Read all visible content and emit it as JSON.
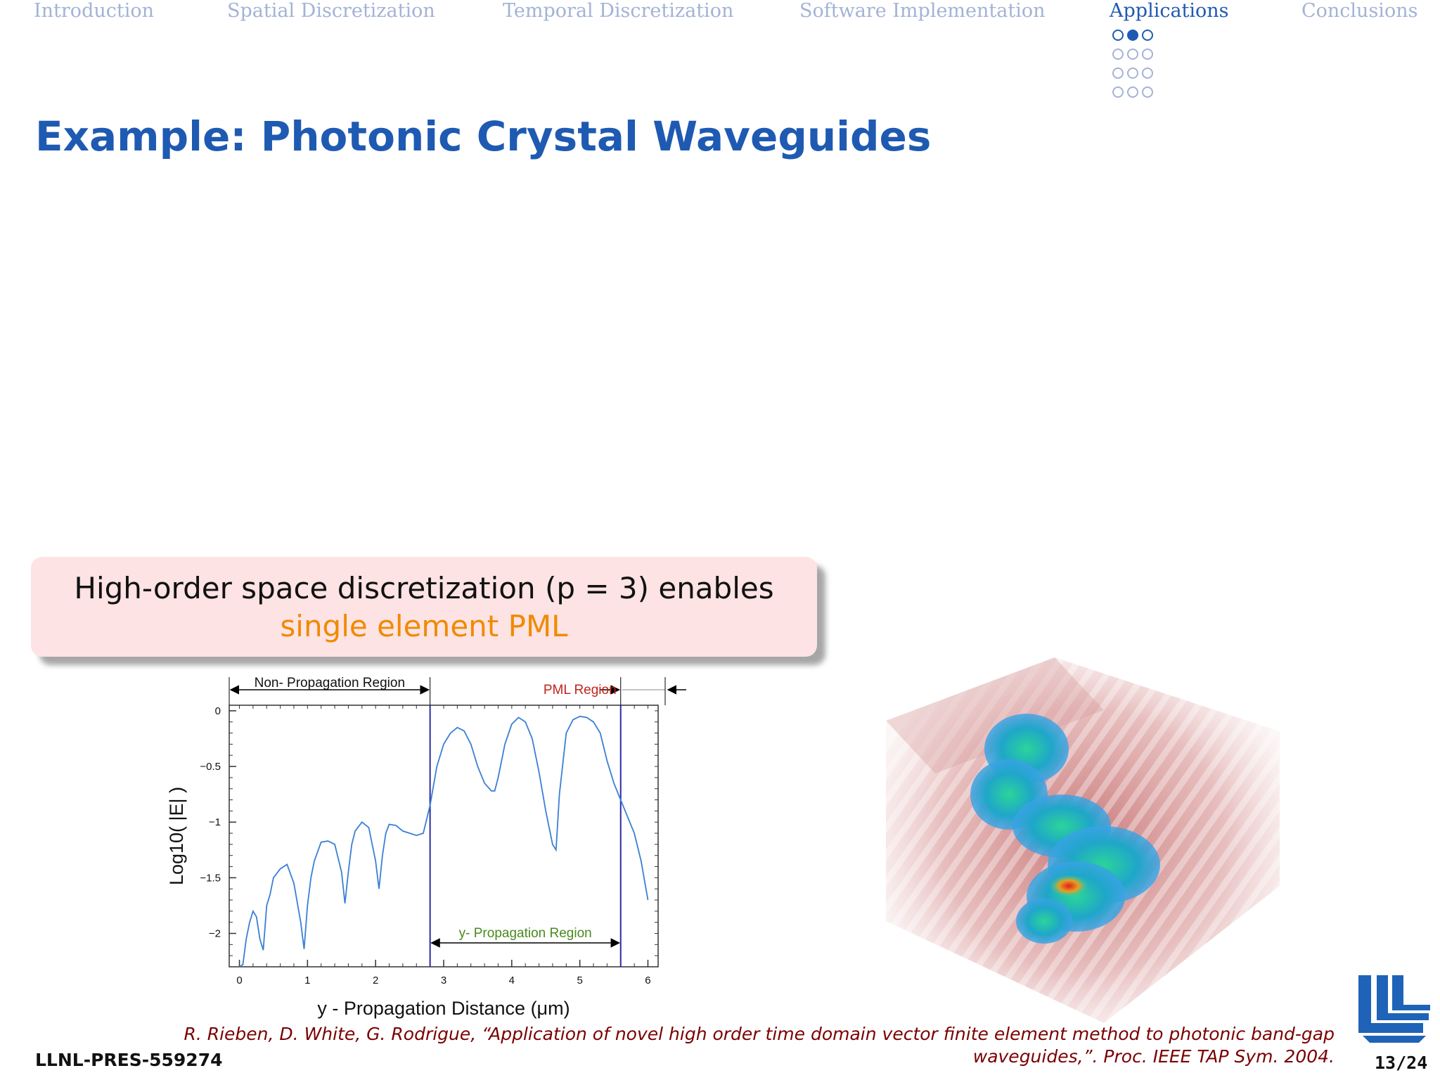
{
  "nav": {
    "items": [
      "Introduction",
      "Spatial Discretization",
      "Temporal Discretization",
      "Software Implementation",
      "Applications",
      "Conclusions"
    ],
    "active_index": 4
  },
  "slide": {
    "title": "Example: Photonic Crystal Waveguides",
    "callout_line1": "High-order space discretization (p = 3) enables",
    "callout_line2": "single element PML",
    "citation_line1": "R. Rieben, D. White, G. Rodrigue, “Application of novel high order time domain vector finite element method to photonic band-gap",
    "citation_line2": "waveguides,”. Proc. IEEE TAP Sym. 2004.",
    "footer_id": "LLNL-PRES-559274",
    "page": "13/24"
  },
  "colors": {
    "accent": "#1f5ab2",
    "nav_inactive": "#a3b3d6",
    "callout_bg": "#fde3e3",
    "highlight": "#f08a00",
    "citation": "#7a0000",
    "line": "#3a7fd5"
  },
  "chart_data": {
    "type": "line",
    "xlabel": "y - Propagation Distance (μm)",
    "ylabel": "Log10( |E| )",
    "xlim": [
      -0.15,
      6.15
    ],
    "ylim": [
      -2.3,
      0.05
    ],
    "xticks": [
      "0",
      "1",
      "2",
      "3",
      "4",
      "5",
      "6"
    ],
    "yticks": [
      "0",
      "−0.5",
      "−1",
      "−1.5",
      "−2"
    ],
    "region_labels": {
      "non_propagation": "Non- Propagation Region",
      "pml": "PML Region",
      "propagation": "y- Propagation Region"
    },
    "boundaries": [
      2.8,
      5.6
    ],
    "series": [
      {
        "x": [
          0.0,
          0.05,
          0.1,
          0.15,
          0.2,
          0.25,
          0.3,
          0.35,
          0.4,
          0.45,
          0.5,
          0.6,
          0.7,
          0.8,
          0.9,
          0.95,
          1.0,
          1.05,
          1.1,
          1.2,
          1.3,
          1.4,
          1.5,
          1.55,
          1.6,
          1.65,
          1.7,
          1.8,
          1.9,
          2.0,
          2.05,
          2.1,
          2.15,
          2.2,
          2.3,
          2.4,
          2.5,
          2.6,
          2.7,
          2.8,
          2.9,
          3.0,
          3.1,
          3.2,
          3.3,
          3.4,
          3.5,
          3.6,
          3.7,
          3.75,
          3.8,
          3.9,
          4.0,
          4.1,
          4.2,
          4.3,
          4.4,
          4.5,
          4.6,
          4.65,
          4.7,
          4.8,
          4.9,
          5.0,
          5.1,
          5.2,
          5.3,
          5.4,
          5.5,
          5.6,
          5.7,
          5.8,
          5.9,
          6.0
        ],
        "y": [
          -2.3,
          -2.28,
          -2.05,
          -1.9,
          -1.8,
          -1.85,
          -2.05,
          -2.15,
          -1.75,
          -1.65,
          -1.5,
          -1.42,
          -1.38,
          -1.55,
          -1.9,
          -2.14,
          -1.75,
          -1.5,
          -1.35,
          -1.18,
          -1.17,
          -1.2,
          -1.45,
          -1.73,
          -1.45,
          -1.2,
          -1.08,
          -1.0,
          -1.05,
          -1.35,
          -1.6,
          -1.3,
          -1.1,
          -1.02,
          -1.03,
          -1.08,
          -1.1,
          -1.12,
          -1.1,
          -0.85,
          -0.5,
          -0.3,
          -0.2,
          -0.15,
          -0.18,
          -0.3,
          -0.5,
          -0.65,
          -0.72,
          -0.72,
          -0.6,
          -0.3,
          -0.12,
          -0.06,
          -0.1,
          -0.25,
          -0.55,
          -0.9,
          -1.2,
          -1.25,
          -0.75,
          -0.2,
          -0.08,
          -0.05,
          -0.06,
          -0.1,
          -0.2,
          -0.45,
          -0.65,
          -0.8,
          -0.95,
          -1.1,
          -1.35,
          -1.7
        ]
      }
    ]
  }
}
